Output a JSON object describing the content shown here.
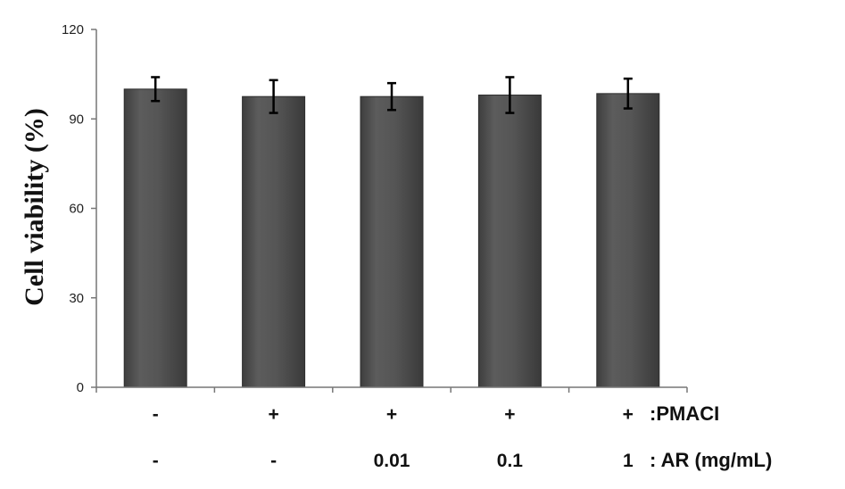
{
  "chart_data": {
    "type": "bar",
    "ylabel": "Cell viability (%)",
    "ylim": [
      0,
      120
    ],
    "yticks": [
      0,
      30,
      60,
      90,
      120
    ],
    "values": [
      100,
      97.5,
      97.5,
      98,
      98.5
    ],
    "errors": [
      4,
      5.5,
      4.5,
      6,
      5
    ],
    "bar_color": "#555555",
    "grid": false,
    "treatment_rows": [
      {
        "name": ":PMACI",
        "labels": [
          "-",
          "+",
          "+",
          "+",
          "+"
        ]
      },
      {
        "name": ": AR (mg/mL)",
        "labels": [
          "-",
          "-",
          "0.01",
          "0.1",
          "1"
        ]
      }
    ]
  }
}
